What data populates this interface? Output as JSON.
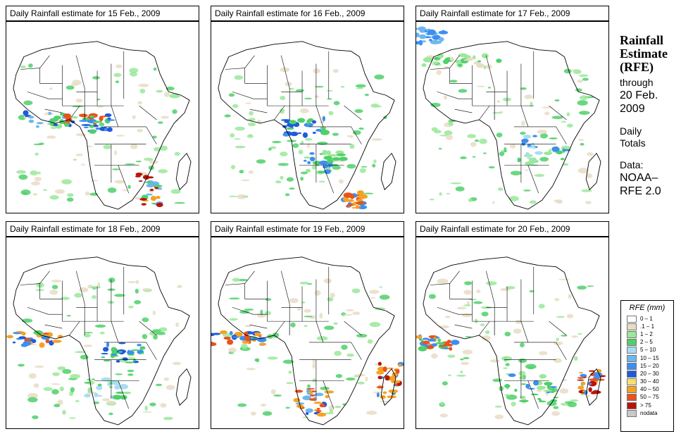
{
  "panels": [
    {
      "title": "Daily Rainfall estimate for  15 Feb., 2009",
      "highlight": "west-central"
    },
    {
      "title": "Daily Rainfall estimate for  16 Feb., 2009",
      "highlight": "central"
    },
    {
      "title": "Daily Rainfall estimate for  17 Feb., 2009",
      "highlight": "east"
    },
    {
      "title": "Daily Rainfall estimate for  18 Feb., 2009",
      "highlight": "gulf"
    },
    {
      "title": "Daily Rainfall estimate for  19 Feb., 2009",
      "highlight": "south-atlantic"
    },
    {
      "title": "Daily Rainfall estimate for  20 Feb., 2009",
      "highlight": "madagascar"
    }
  ],
  "side": {
    "title1": "Rainfall",
    "title2": "Estimate",
    "title3": "(RFE)",
    "through": "through",
    "date1": "20 Feb.",
    "date2": "2009",
    "daily": "Daily",
    "totals": "Totals",
    "data_label": "Data:",
    "source1": "NOAA–",
    "source2": "RFE 2.0"
  },
  "legend": {
    "title": "RFE (mm)",
    "items": [
      {
        "label": "0 – 1",
        "color": "#ffffff"
      },
      {
        "label": ".1 – 1",
        "color": "#e8dcc4"
      },
      {
        "label": "1 – 2",
        "color": "#9ae89a"
      },
      {
        "label": "2 – 5",
        "color": "#4fd06a"
      },
      {
        "label": "5 – 10",
        "color": "#a9dcf2"
      },
      {
        "label": "10 – 15",
        "color": "#6db7ee"
      },
      {
        "label": "15 – 20",
        "color": "#3d8ef0"
      },
      {
        "label": "20 – 30",
        "color": "#1e5adc"
      },
      {
        "label": "30 – 40",
        "color": "#f4e070"
      },
      {
        "label": "40 – 50",
        "color": "#f5a223"
      },
      {
        "label": "50 – 75",
        "color": "#e8521c"
      },
      {
        "label": "> 75",
        "color": "#b81408"
      },
      {
        "label": "nodata",
        "color": "#c8c8c8"
      }
    ]
  }
}
